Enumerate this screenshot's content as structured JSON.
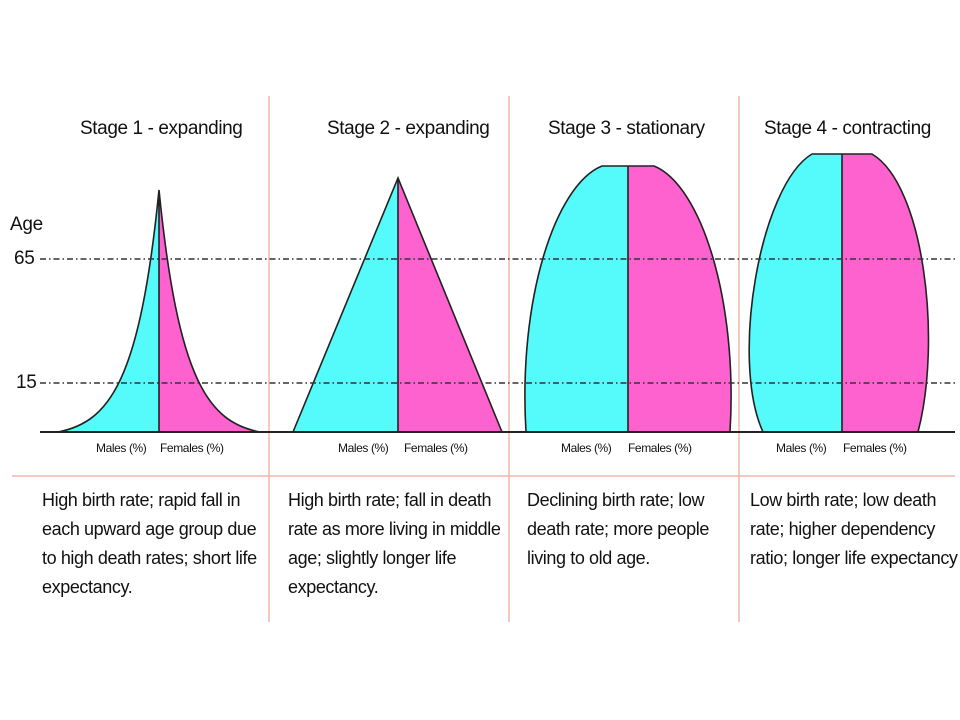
{
  "age_axis": {
    "title": "Age",
    "ticks": [
      "65",
      "15"
    ]
  },
  "stages": [
    {
      "title": "Stage 1 - expanding",
      "males_label": "Males (%)",
      "females_label": "Females (%)",
      "description": "High birth rate; rapid fall in each upward age group due to high death rates; short life expectancy."
    },
    {
      "title": "Stage 2 - expanding",
      "males_label": "Males (%)",
      "females_label": "Females (%)",
      "description": "High birth rate; fall in death rate as more living in middle age; slightly longer life expectancy."
    },
    {
      "title": "Stage 3 - stationary",
      "males_label": "Males (%)",
      "females_label": "Females (%)",
      "description": "Declining birth rate; low death rate; more people living to old age."
    },
    {
      "title": "Stage 4 - contracting",
      "males_label": "Males (%)",
      "females_label": "Females (%)",
      "description": "Low birth rate; low death rate; higher dependency ratio; longer life expectancy"
    }
  ],
  "colors": {
    "males": "#55fbfb",
    "females": "#fd62cf",
    "divider": "#f2b8a8",
    "outline": "#222222"
  }
}
